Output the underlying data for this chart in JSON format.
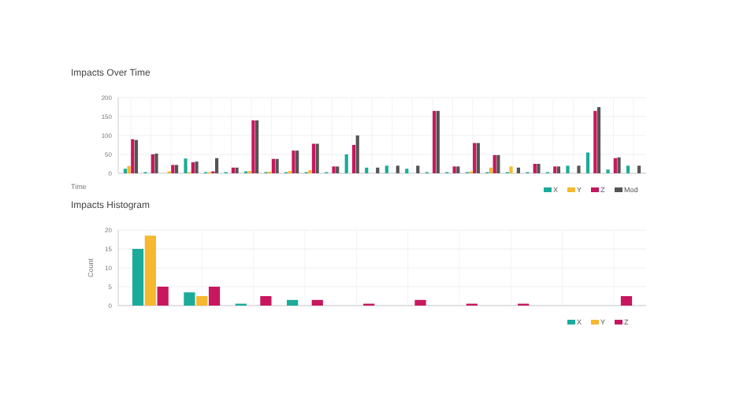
{
  "chart_data": [
    {
      "type": "bar",
      "title": "Impacts Over Time",
      "xlabel": "Time",
      "categories": [
        null,
        null,
        null,
        null,
        null,
        null,
        null,
        null,
        null,
        null,
        null,
        null,
        null,
        null,
        null,
        null,
        null,
        null,
        null,
        null,
        null,
        null,
        null,
        null,
        null,
        null
      ],
      "series": [
        {
          "name": "X",
          "color": "#1aab9b",
          "values": [
            12,
            3,
            0,
            39,
            3,
            3,
            5,
            3,
            3,
            3,
            3,
            50,
            15,
            20,
            12,
            3,
            3,
            3,
            3,
            3,
            3,
            3,
            20,
            55,
            10,
            20
          ]
        },
        {
          "name": "Y",
          "color": "#f5b82e",
          "values": [
            19,
            0,
            5,
            3,
            3,
            0,
            6,
            4,
            6,
            8,
            0,
            0,
            0,
            0,
            0,
            0,
            0,
            5,
            15,
            18,
            0,
            0,
            0,
            0,
            0,
            0
          ]
        },
        {
          "name": "Z",
          "color": "#c8175e",
          "values": [
            90,
            50,
            22,
            29,
            5,
            15,
            140,
            38,
            60,
            78,
            18,
            75,
            0,
            0,
            0,
            165,
            18,
            80,
            48,
            0,
            25,
            18,
            0,
            165,
            40,
            0
          ]
        },
        {
          "name": "Mod",
          "color": "#545454",
          "values": [
            88,
            52,
            22,
            31,
            40,
            15,
            140,
            38,
            60,
            78,
            18,
            100,
            15,
            20,
            20,
            165,
            18,
            80,
            48,
            15,
            25,
            18,
            20,
            175,
            42,
            20
          ]
        }
      ],
      "ylim": [
        0,
        200
      ],
      "yticks": [
        0,
        50,
        100,
        150,
        200
      ],
      "grid": true,
      "legend": "bottom right"
    },
    {
      "type": "bar",
      "title": "Impacts Histogram",
      "ylabel": "Count",
      "categories": [
        null,
        null,
        null,
        null,
        null,
        null,
        null,
        null,
        null,
        null
      ],
      "series": [
        {
          "name": "X",
          "color": "#1aab9b",
          "values": [
            15,
            3.5,
            0.5,
            1.5,
            0,
            0,
            0,
            0,
            0,
            0
          ]
        },
        {
          "name": "Y",
          "color": "#f5b82e",
          "values": [
            18.5,
            2.5,
            0,
            0,
            0,
            0,
            0,
            0,
            0,
            0
          ]
        },
        {
          "name": "Z",
          "color": "#c8175e",
          "values": [
            5,
            5,
            2.5,
            1.5,
            0.5,
            1.5,
            0.5,
            0.5,
            0,
            2.5
          ]
        }
      ],
      "ylim": [
        0,
        20
      ],
      "yticks": [
        0,
        5,
        10,
        15,
        20
      ],
      "grid": true,
      "legend": "bottom right"
    }
  ]
}
